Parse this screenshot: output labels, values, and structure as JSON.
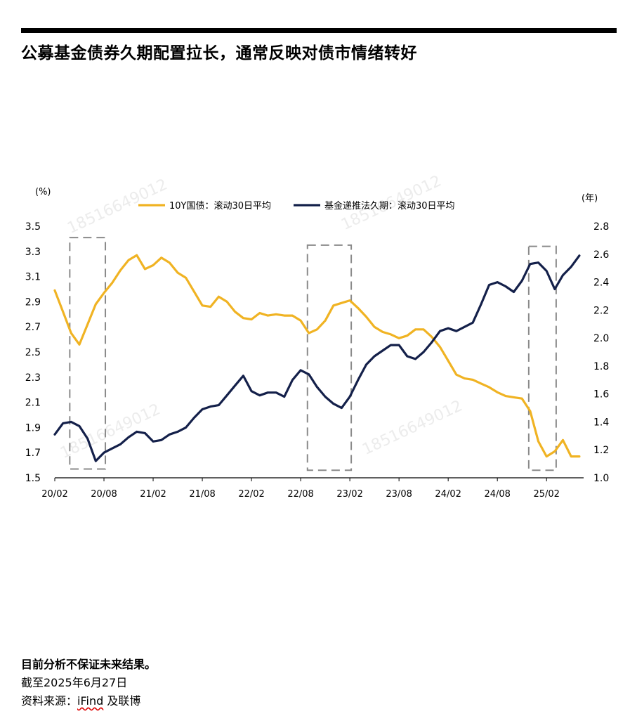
{
  "page": {
    "title": "公募基金债券久期配置拉长，通常反映对债市情绪转好",
    "disclaimer": "目前分析不保证未来结果。",
    "as_of": "截至2025年6月27日",
    "source_prefix": "资料来源：",
    "source_brand": "iFind",
    "source_suffix": " 及联博",
    "watermark": "18516649012"
  },
  "colors": {
    "yield_line": "#F0B323",
    "duration_line": "#14204A",
    "highlight_box": "#8A8A8A"
  },
  "chart_data": {
    "type": "line",
    "left_axis": {
      "unit": "(%)",
      "ticks": [
        "1.5",
        "1.7",
        "1.9",
        "2.1",
        "2.3",
        "2.5",
        "2.7",
        "2.9",
        "3.1",
        "3.3",
        "3.5"
      ],
      "range": [
        1.5,
        3.5
      ]
    },
    "right_axis": {
      "unit": "(年)",
      "ticks": [
        "1.0",
        "1.2",
        "1.4",
        "1.6",
        "1.8",
        "2.0",
        "2.2",
        "2.4",
        "2.6",
        "2.8"
      ],
      "range": [
        1.0,
        2.8
      ]
    },
    "x_ticks": [
      "20/02",
      "20/08",
      "21/02",
      "21/08",
      "22/02",
      "22/08",
      "23/02",
      "23/08",
      "24/02",
      "24/08",
      "25/02"
    ],
    "x_range": [
      "2020-02",
      "2025-06"
    ],
    "legend_position": "top",
    "series": [
      {
        "name": "10Y国债：滚动30日平均",
        "axis": "left",
        "x": [
          "2020-02",
          "2020-03",
          "2020-04",
          "2020-05",
          "2020-06",
          "2020-07",
          "2020-08",
          "2020-09",
          "2020-10",
          "2020-11",
          "2020-12",
          "2021-01",
          "2021-02",
          "2021-03",
          "2021-04",
          "2021-05",
          "2021-06",
          "2021-07",
          "2021-08",
          "2021-09",
          "2021-10",
          "2021-11",
          "2021-12",
          "2022-01",
          "2022-02",
          "2022-03",
          "2022-04",
          "2022-05",
          "2022-06",
          "2022-07",
          "2022-08",
          "2022-09",
          "2022-10",
          "2022-11",
          "2022-12",
          "2023-01",
          "2023-02",
          "2023-03",
          "2023-04",
          "2023-05",
          "2023-06",
          "2023-07",
          "2023-08",
          "2023-09",
          "2023-10",
          "2023-11",
          "2023-12",
          "2024-01",
          "2024-02",
          "2024-03",
          "2024-04",
          "2024-05",
          "2024-06",
          "2024-07",
          "2024-08",
          "2024-09",
          "2024-10",
          "2024-11",
          "2024-12",
          "2025-01",
          "2025-02",
          "2025-03",
          "2025-04",
          "2025-05",
          "2025-06"
        ],
        "values": [
          2.99,
          2.82,
          2.65,
          2.56,
          2.72,
          2.88,
          2.97,
          3.05,
          3.15,
          3.23,
          3.27,
          3.16,
          3.19,
          3.25,
          3.21,
          3.13,
          3.09,
          2.98,
          2.87,
          2.86,
          2.94,
          2.9,
          2.82,
          2.77,
          2.76,
          2.81,
          2.79,
          2.8,
          2.79,
          2.79,
          2.75,
          2.65,
          2.68,
          2.75,
          2.87,
          2.89,
          2.91,
          2.85,
          2.78,
          2.7,
          2.66,
          2.64,
          2.61,
          2.63,
          2.68,
          2.68,
          2.62,
          2.54,
          2.43,
          2.32,
          2.29,
          2.28,
          2.25,
          2.22,
          2.18,
          2.15,
          2.14,
          2.13,
          2.03,
          1.79,
          1.67,
          1.71,
          1.8,
          1.67,
          1.67
        ]
      },
      {
        "name": "基金递推法久期：滚动30日平均",
        "axis": "right",
        "x": [
          "2020-02",
          "2020-03",
          "2020-04",
          "2020-05",
          "2020-06",
          "2020-07",
          "2020-08",
          "2020-09",
          "2020-10",
          "2020-11",
          "2020-12",
          "2021-01",
          "2021-02",
          "2021-03",
          "2021-04",
          "2021-05",
          "2021-06",
          "2021-07",
          "2021-08",
          "2021-09",
          "2021-10",
          "2021-11",
          "2021-12",
          "2022-01",
          "2022-02",
          "2022-03",
          "2022-04",
          "2022-05",
          "2022-06",
          "2022-07",
          "2022-08",
          "2022-09",
          "2022-10",
          "2022-11",
          "2022-12",
          "2023-01",
          "2023-02",
          "2023-03",
          "2023-04",
          "2023-05",
          "2023-06",
          "2023-07",
          "2023-08",
          "2023-09",
          "2023-10",
          "2023-11",
          "2023-12",
          "2024-01",
          "2024-02",
          "2024-03",
          "2024-04",
          "2024-05",
          "2024-06",
          "2024-07",
          "2024-08",
          "2024-09",
          "2024-10",
          "2024-11",
          "2024-12",
          "2025-01",
          "2025-02",
          "2025-03",
          "2025-04",
          "2025-05",
          "2025-06"
        ],
        "values": [
          1.31,
          1.39,
          1.4,
          1.37,
          1.28,
          1.12,
          1.18,
          1.21,
          1.24,
          1.29,
          1.33,
          1.32,
          1.26,
          1.27,
          1.31,
          1.33,
          1.36,
          1.43,
          1.49,
          1.51,
          1.52,
          1.59,
          1.66,
          1.73,
          1.62,
          1.59,
          1.61,
          1.61,
          1.58,
          1.7,
          1.77,
          1.74,
          1.65,
          1.58,
          1.53,
          1.5,
          1.58,
          1.7,
          1.81,
          1.87,
          1.91,
          1.95,
          1.95,
          1.87,
          1.85,
          1.9,
          1.97,
          2.05,
          2.07,
          2.05,
          2.08,
          2.11,
          2.24,
          2.38,
          2.4,
          2.37,
          2.33,
          2.41,
          2.53,
          2.54,
          2.48,
          2.35,
          2.45,
          2.51,
          2.59
        ]
      }
    ],
    "highlight_periods": [
      {
        "start": "2020-04",
        "end": "2020-08",
        "value_range": [
          1.57,
          3.41
        ]
      },
      {
        "start": "2022-09",
        "end": "2023-02",
        "value_range": [
          1.56,
          3.35
        ]
      },
      {
        "start": "2024-12",
        "end": "2025-03",
        "value_range": [
          1.56,
          3.34
        ]
      }
    ]
  }
}
